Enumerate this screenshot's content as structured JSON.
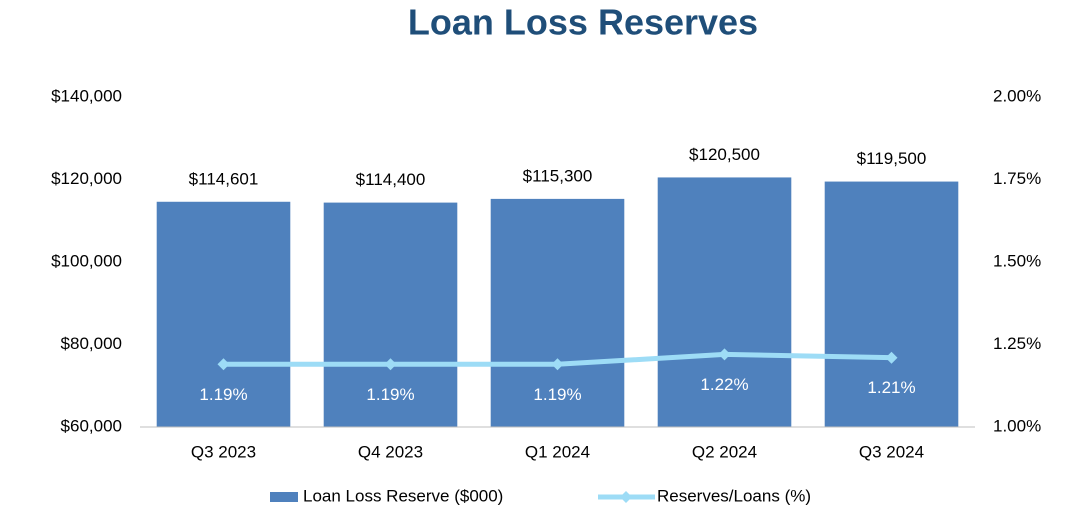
{
  "chart_data": {
    "type": "bar",
    "title": "Loan Loss Reserves",
    "categories": [
      "Q3 2023",
      "Q4 2023",
      "Q1 2024",
      "Q2 2024",
      "Q3 2024"
    ],
    "series": [
      {
        "name": "Loan Loss Reserve ($000)",
        "type": "bar",
        "color": "#4f81bd",
        "values": [
          114601,
          114400,
          115300,
          120500,
          119500
        ],
        "value_labels": [
          "$114,601",
          "$114,400",
          "$115,300",
          "$120,500",
          "$119,500"
        ]
      },
      {
        "name": "Reserves/Loans (%)",
        "type": "line",
        "axis": "y2",
        "color": "#9ddcf6",
        "values": [
          1.19,
          1.19,
          1.19,
          1.22,
          1.21
        ],
        "value_labels": [
          "1.19%",
          "1.19%",
          "1.19%",
          "1.22%",
          "1.21%"
        ]
      }
    ],
    "ylim": [
      60000,
      140000
    ],
    "yticks": [
      {
        "value": 60000,
        "label": "$60,000"
      },
      {
        "value": 80000,
        "label": "$80,000"
      },
      {
        "value": 100000,
        "label": "$100,000"
      },
      {
        "value": 120000,
        "label": "$120,000"
      },
      {
        "value": 140000,
        "label": "$140,000"
      }
    ],
    "y2lim": [
      1.0,
      2.0
    ],
    "y2ticks": [
      {
        "value": 1.0,
        "label": "1.00%"
      },
      {
        "value": 1.25,
        "label": "1.25%"
      },
      {
        "value": 1.5,
        "label": "1.50%"
      },
      {
        "value": 1.75,
        "label": "1.75%"
      },
      {
        "value": 2.0,
        "label": "2.00%"
      }
    ],
    "legend": "bottom"
  }
}
